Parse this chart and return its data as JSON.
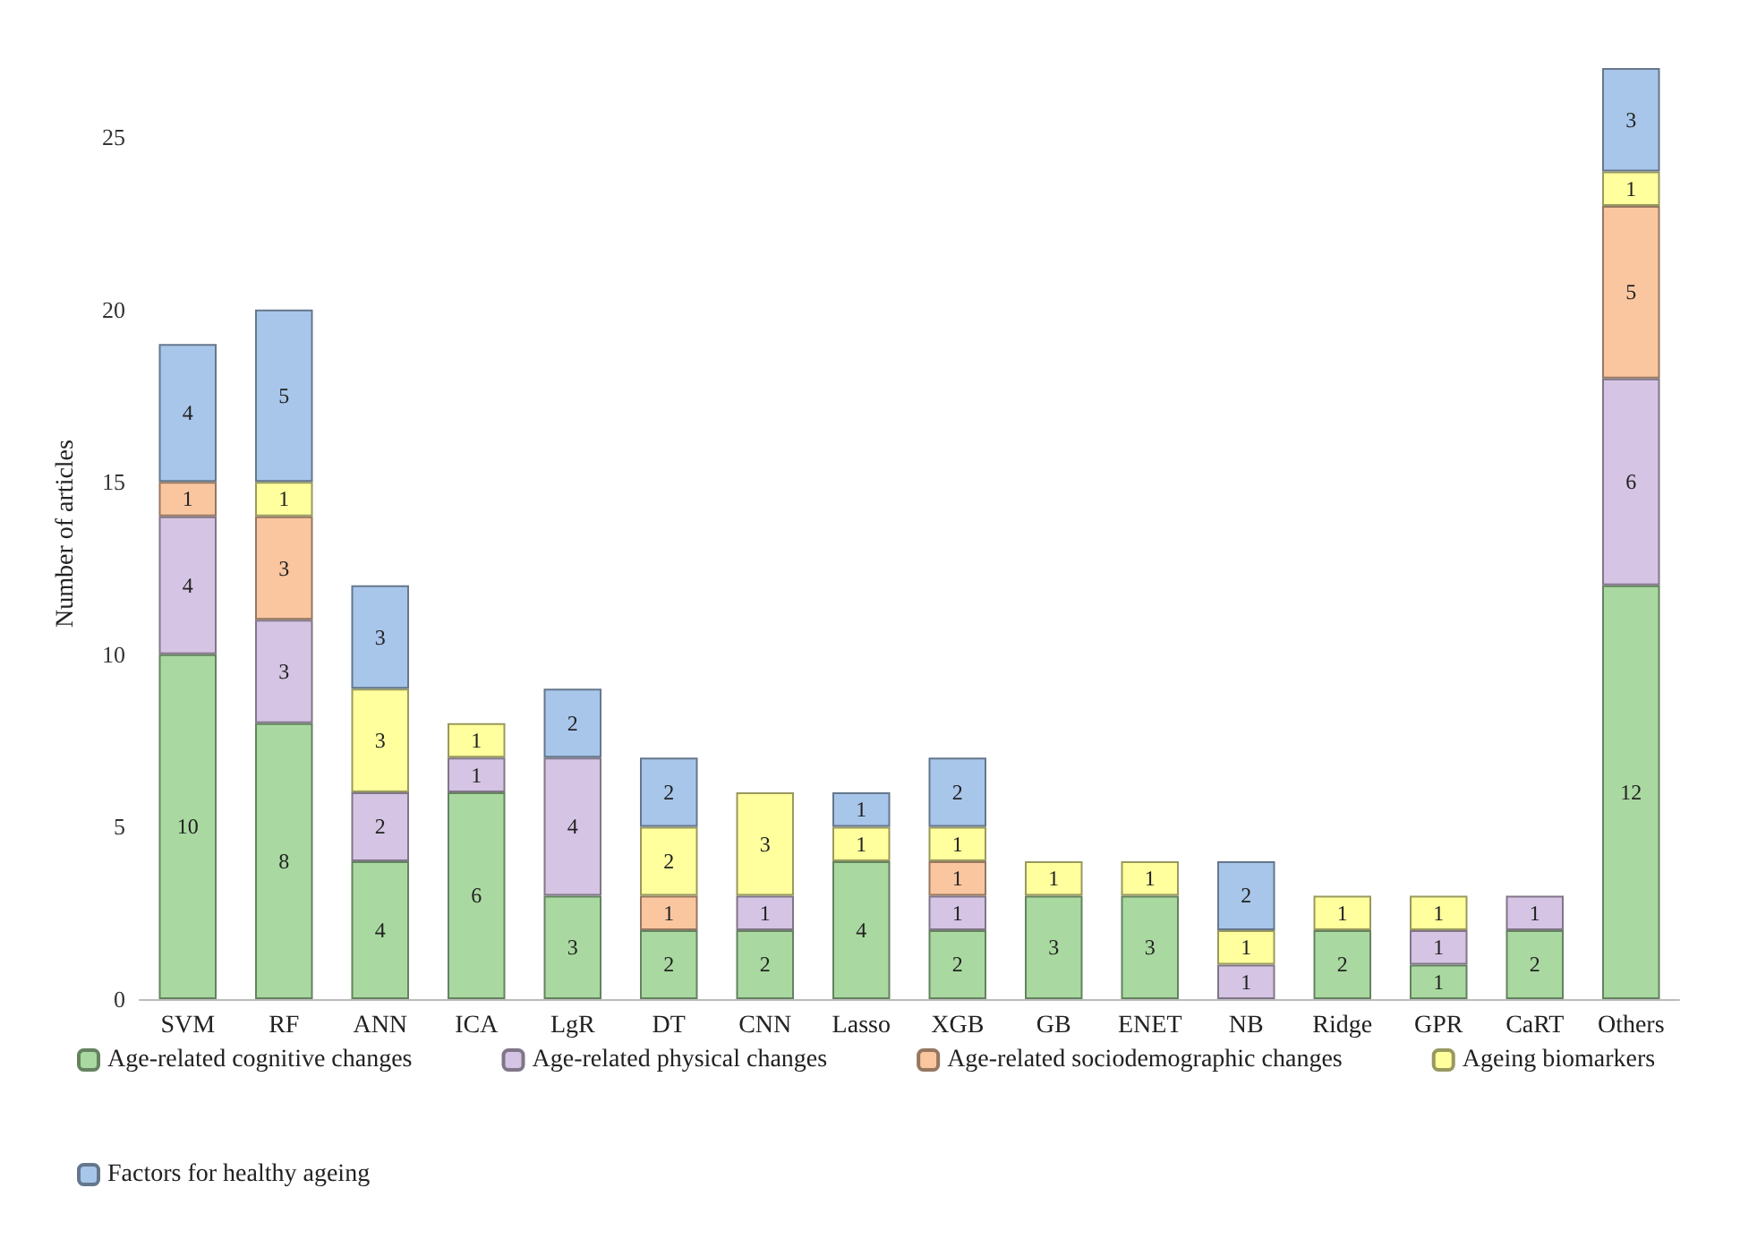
{
  "chart_data": {
    "type": "bar",
    "stacked": true,
    "ylabel": "Number of articles",
    "categories": [
      "SVM",
      "RF",
      "ANN",
      "ICA",
      "LgR",
      "DT",
      "CNN",
      "Lasso",
      "XGB",
      "GB",
      "ENET",
      "NB",
      "Ridge",
      "GPR",
      "CaRT",
      "Others"
    ],
    "series": [
      {
        "name": "Age-related cognitive changes",
        "color": "#a9d9a0",
        "values": [
          10,
          8,
          4,
          6,
          3,
          2,
          2,
          4,
          2,
          3,
          3,
          null,
          2,
          1,
          2,
          12
        ]
      },
      {
        "name": "Age-related physical changes",
        "color": "#d5c4e3",
        "values": [
          4,
          3,
          2,
          1,
          4,
          null,
          1,
          null,
          1,
          null,
          null,
          1,
          null,
          1,
          1,
          6
        ]
      },
      {
        "name": "Age-related sociodemographic changes",
        "color": "#f9c6a0",
        "values": [
          1,
          3,
          null,
          null,
          null,
          1,
          null,
          null,
          1,
          null,
          null,
          null,
          null,
          null,
          null,
          5
        ]
      },
      {
        "name": "Ageing biomarkers",
        "color": "#ffff9e",
        "values": [
          null,
          1,
          3,
          1,
          null,
          2,
          3,
          1,
          1,
          1,
          1,
          1,
          1,
          1,
          null,
          1
        ]
      },
      {
        "name": "Factors for healthy ageing",
        "color": "#a8c6ea",
        "values": [
          4,
          5,
          3,
          null,
          2,
          2,
          null,
          1,
          2,
          null,
          null,
          2,
          null,
          null,
          null,
          3
        ]
      }
    ],
    "ylim": [
      0,
      27
    ],
    "yticks": [
      0,
      5,
      10,
      15,
      20,
      25
    ],
    "grid": false,
    "legend": "bottom",
    "data_labels": true
  }
}
